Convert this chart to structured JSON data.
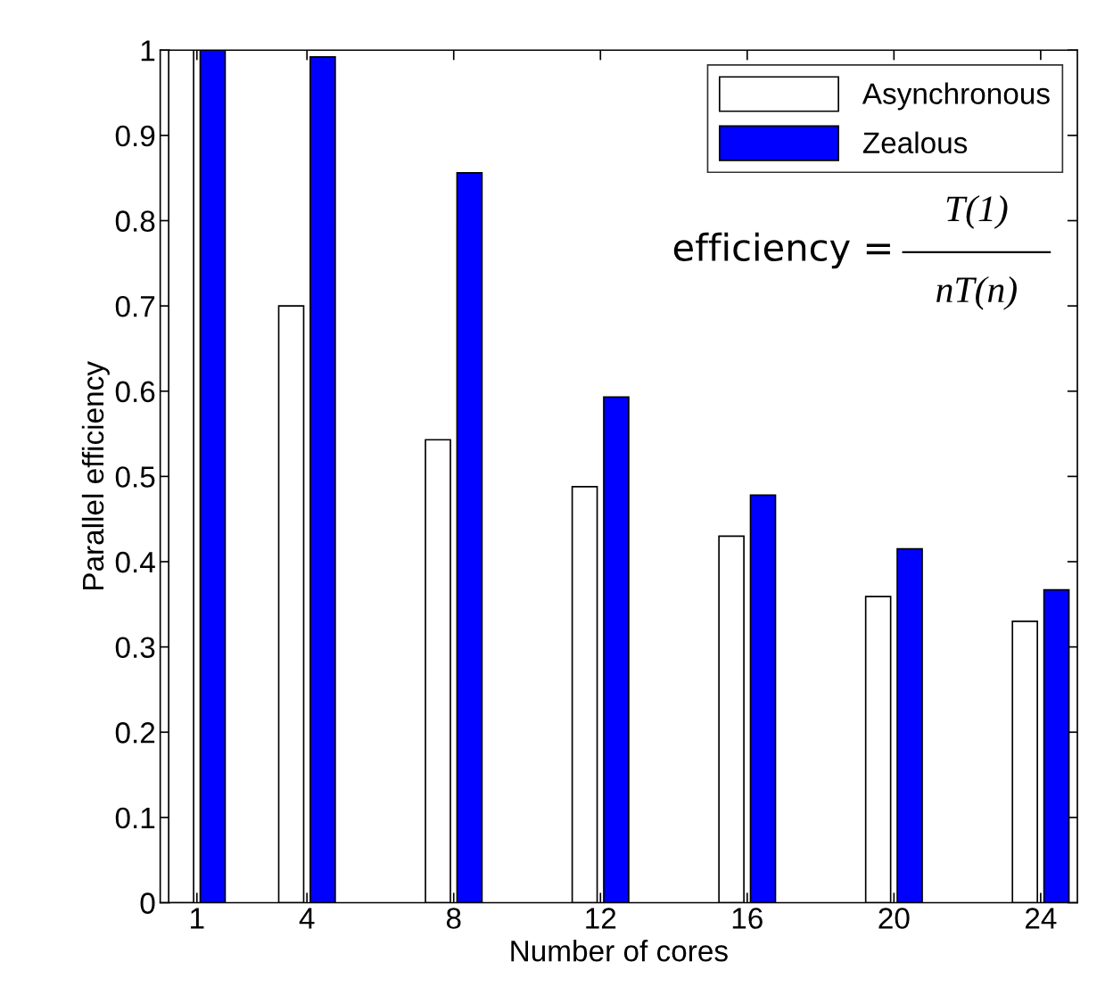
{
  "chart_data": {
    "type": "bar",
    "xlabel": "Number of cores",
    "ylabel": "Parallel efficiency",
    "x": [
      1,
      4,
      8,
      12,
      16,
      20,
      24
    ],
    "series": [
      {
        "name": "Asynchronous",
        "color": "#ffffff",
        "values": [
          1.0,
          0.7,
          0.543,
          0.488,
          0.43,
          0.359,
          0.33
        ]
      },
      {
        "name": "Zealous",
        "color": "#0000ff",
        "values": [
          1.0,
          0.992,
          0.856,
          0.593,
          0.478,
          0.415,
          0.367
        ]
      }
    ],
    "xlim": [
      0,
      25
    ],
    "xticks": [
      1,
      4,
      8,
      12,
      16,
      20,
      24
    ],
    "ylim": [
      0,
      1
    ],
    "yticks": [
      0,
      0.1,
      0.2,
      0.3,
      0.4,
      0.5,
      0.6,
      0.7,
      0.8,
      0.9,
      1
    ],
    "legend": "top right",
    "grid": false,
    "annotations": [
      "efficiency =",
      "T(1)",
      "nT(n)"
    ]
  }
}
